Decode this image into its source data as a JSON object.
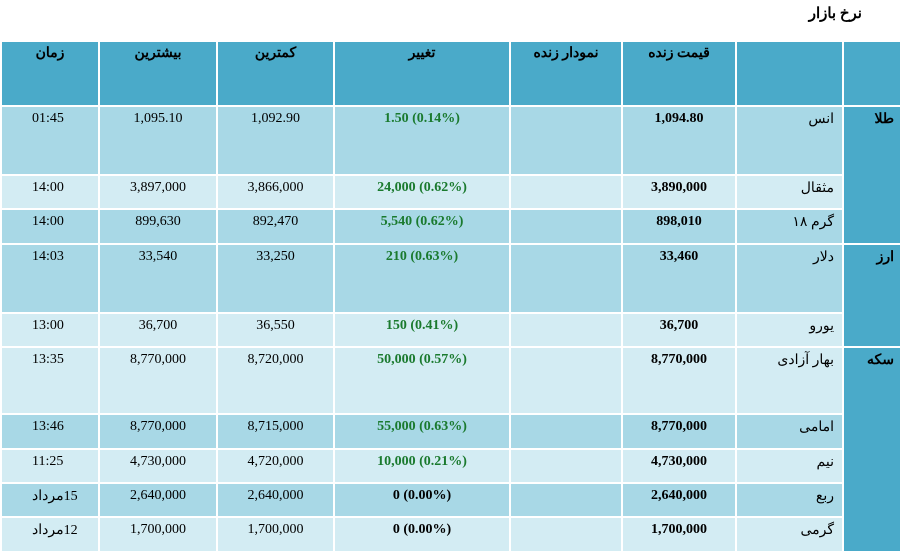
{
  "title": "نرخ بازار",
  "headers": {
    "group": "",
    "item": "",
    "price": "قیمت زنده",
    "chart": "نمودار زنده",
    "change": "تغییر",
    "low": "کمترین",
    "high": "بیشترین",
    "time": "زمان"
  },
  "colors": {
    "header": "#4aaac9",
    "row_dark": "#a8d8e6",
    "row_light": "#d3ecf3",
    "positive": "#1a7a2e"
  },
  "groups": [
    {
      "label": "طلا",
      "rows": [
        {
          "item": "انس",
          "price": "1,094.80",
          "change": "1.50 (0.14%)",
          "low": "1,092.90",
          "high": "1,095.10",
          "time": "01:45",
          "dir": "up"
        },
        {
          "item": "مثقال",
          "price": "3,890,000",
          "change": "24,000 (0.62%)",
          "low": "3,866,000",
          "high": "3,897,000",
          "time": "14:00",
          "dir": "up"
        },
        {
          "item": "گرم ۱۸",
          "price": "898,010",
          "change": "5,540 (0.62%)",
          "low": "892,470",
          "high": "899,630",
          "time": "14:00",
          "dir": "up"
        }
      ]
    },
    {
      "label": "ارز",
      "rows": [
        {
          "item": "دلار",
          "price": "33,460",
          "change": "210 (0.63%)",
          "low": "33,250",
          "high": "33,540",
          "time": "14:03",
          "dir": "up"
        },
        {
          "item": "یورو",
          "price": "36,700",
          "change": "150 (0.41%)",
          "low": "36,550",
          "high": "36,700",
          "time": "13:00",
          "dir": "up"
        }
      ]
    },
    {
      "label": "سکه",
      "rows": [
        {
          "item": "بهار آزادی",
          "price": "8,770,000",
          "change": "50,000 (0.57%)",
          "low": "8,720,000",
          "high": "8,770,000",
          "time": "13:35",
          "dir": "up"
        },
        {
          "item": "امامی",
          "price": "8,770,000",
          "change": "55,000 (0.63%)",
          "low": "8,715,000",
          "high": "8,770,000",
          "time": "13:46",
          "dir": "up"
        },
        {
          "item": "نیم",
          "price": "4,730,000",
          "change": "10,000 (0.21%)",
          "low": "4,720,000",
          "high": "4,730,000",
          "time": "11:25",
          "dir": "up"
        },
        {
          "item": "ربع",
          "price": "2,640,000",
          "change": "0 (0.00%)",
          "low": "2,640,000",
          "high": "2,640,000",
          "time": "15مرداد",
          "dir": "flat"
        },
        {
          "item": "گرمی",
          "price": "1,700,000",
          "change": "0 (0.00%)",
          "low": "1,700,000",
          "high": "1,700,000",
          "time": "12مرداد",
          "dir": "flat"
        }
      ]
    }
  ]
}
